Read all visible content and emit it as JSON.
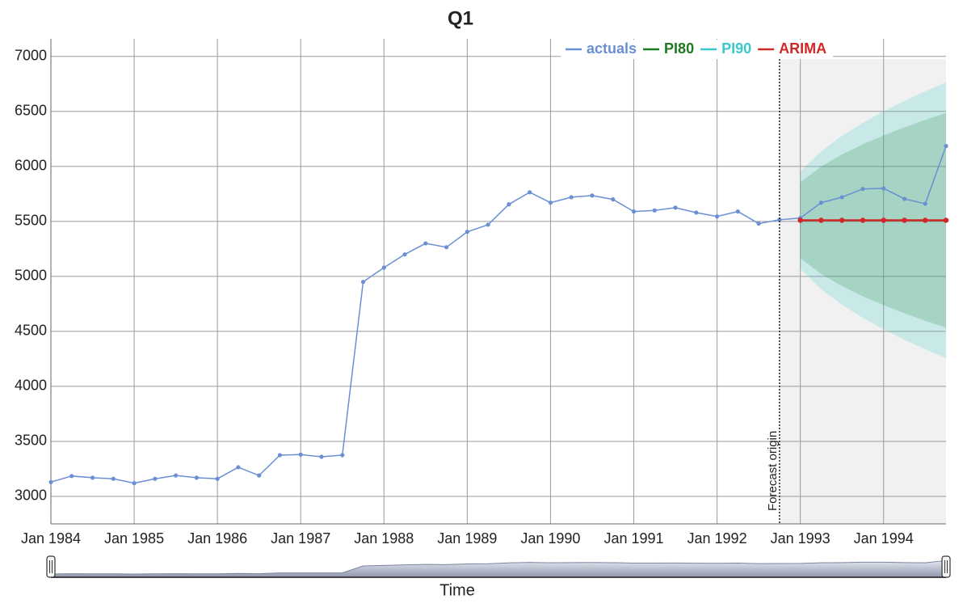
{
  "chart_data": {
    "type": "line",
    "title": "Q1",
    "x_label": "Time",
    "x": [
      "1984-01",
      "1984-04",
      "1984-07",
      "1984-10",
      "1985-01",
      "1985-04",
      "1985-07",
      "1985-10",
      "1986-01",
      "1986-04",
      "1986-07",
      "1986-10",
      "1987-01",
      "1987-04",
      "1987-07",
      "1987-10",
      "1988-01",
      "1988-04",
      "1988-07",
      "1988-10",
      "1989-01",
      "1989-04",
      "1989-07",
      "1989-10",
      "1990-01",
      "1990-04",
      "1990-07",
      "1990-10",
      "1991-01",
      "1991-04",
      "1991-07",
      "1991-10",
      "1992-01",
      "1992-04",
      "1992-07",
      "1992-10",
      "1993-01",
      "1993-04",
      "1993-07",
      "1993-10",
      "1994-01",
      "1994-04",
      "1994-07",
      "1994-10"
    ],
    "series": [
      {
        "name": "actuals",
        "color": "#6a8fd2",
        "values": [
          3130,
          3185,
          3170,
          3160,
          3120,
          3160,
          3190,
          3170,
          3160,
          3265,
          3190,
          3375,
          3380,
          3360,
          3375,
          4950,
          5080,
          5200,
          5300,
          5265,
          5405,
          5470,
          5655,
          5765,
          5670,
          5720,
          5735,
          5700,
          5590,
          5600,
          5625,
          5580,
          5545,
          5590,
          5480,
          5515,
          5530,
          5670,
          5720,
          5795,
          5800,
          5705,
          5660,
          6185
        ]
      },
      {
        "name": "PI80",
        "color": "#1f7a1f",
        "lower": [
          null,
          null,
          null,
          null,
          null,
          null,
          null,
          null,
          null,
          null,
          null,
          null,
          null,
          null,
          null,
          null,
          null,
          null,
          null,
          null,
          null,
          null,
          null,
          null,
          null,
          null,
          null,
          null,
          null,
          null,
          null,
          null,
          null,
          null,
          null,
          null,
          5165,
          5022,
          4912,
          4820,
          4739,
          4665,
          4597,
          4534
        ],
        "upper": [
          null,
          null,
          null,
          null,
          null,
          null,
          null,
          null,
          null,
          null,
          null,
          null,
          null,
          null,
          null,
          null,
          null,
          null,
          null,
          null,
          null,
          null,
          null,
          null,
          null,
          null,
          null,
          null,
          null,
          null,
          null,
          null,
          null,
          null,
          null,
          null,
          5855,
          5998,
          6108,
          6200,
          6281,
          6355,
          6423,
          6486
        ]
      },
      {
        "name": "PI90",
        "color": "#3cc8c8",
        "lower": [
          null,
          null,
          null,
          null,
          null,
          null,
          null,
          null,
          null,
          null,
          null,
          null,
          null,
          null,
          null,
          null,
          null,
          null,
          null,
          null,
          null,
          null,
          null,
          null,
          null,
          null,
          null,
          null,
          null,
          null,
          null,
          null,
          null,
          null,
          null,
          null,
          5067,
          4883,
          4742,
          4624,
          4519,
          4425,
          4338,
          4257
        ],
        "upper": [
          null,
          null,
          null,
          null,
          null,
          null,
          null,
          null,
          null,
          null,
          null,
          null,
          null,
          null,
          null,
          null,
          null,
          null,
          null,
          null,
          null,
          null,
          null,
          null,
          null,
          null,
          null,
          null,
          null,
          null,
          null,
          null,
          null,
          null,
          null,
          null,
          5953,
          6137,
          6278,
          6396,
          6501,
          6595,
          6682,
          6763
        ]
      },
      {
        "name": "ARIMA",
        "color": "#d02828",
        "values": [
          null,
          null,
          null,
          null,
          null,
          null,
          null,
          null,
          null,
          null,
          null,
          null,
          null,
          null,
          null,
          null,
          null,
          null,
          null,
          null,
          null,
          null,
          null,
          null,
          null,
          null,
          null,
          null,
          null,
          null,
          null,
          null,
          null,
          null,
          null,
          null,
          5510,
          5510,
          5510,
          5510,
          5510,
          5510,
          5510,
          5510
        ]
      }
    ],
    "xlim": [
      "1984-01",
      "1994-10"
    ],
    "xticks": [
      {
        "value": "1984-01",
        "label": "Jan 1984"
      },
      {
        "value": "1985-01",
        "label": "Jan 1985"
      },
      {
        "value": "1986-01",
        "label": "Jan 1986"
      },
      {
        "value": "1987-01",
        "label": "Jan 1987"
      },
      {
        "value": "1988-01",
        "label": "Jan 1988"
      },
      {
        "value": "1989-01",
        "label": "Jan 1989"
      },
      {
        "value": "1990-01",
        "label": "Jan 1990"
      },
      {
        "value": "1991-01",
        "label": "Jan 1991"
      },
      {
        "value": "1992-01",
        "label": "Jan 1992"
      },
      {
        "value": "1993-01",
        "label": "Jan 1993"
      },
      {
        "value": "1994-01",
        "label": "Jan 1994"
      }
    ],
    "ylim": [
      2750,
      7160
    ],
    "yticks": [
      3000,
      3500,
      4000,
      4500,
      5000,
      5500,
      6000,
      6500,
      7000
    ],
    "grid": true,
    "legend": "top-right",
    "annotation": {
      "text": "Forecast origin",
      "x": "1992-10"
    }
  }
}
